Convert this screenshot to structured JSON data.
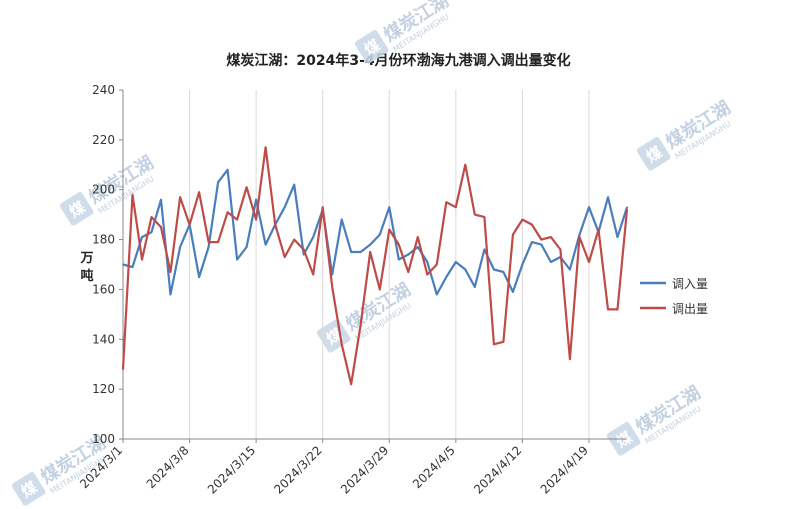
{
  "chart_data": {
    "type": "line",
    "title": "煤炭江湖：2024年3-4月份环渤海九港调入调出量变化",
    "ylabel": "万吨",
    "xlabel": "",
    "ylim": [
      100,
      240
    ],
    "yticks": [
      100,
      120,
      140,
      160,
      180,
      200,
      220,
      240
    ],
    "x_tick_labels": [
      "2024/3/1",
      "2024/3/8",
      "2024/3/15",
      "2024/3/22",
      "2024/3/29",
      "2024/4/5",
      "2024/4/12",
      "2024/4/19"
    ],
    "x": [
      "2024/3/1",
      "2024/3/2",
      "2024/3/3",
      "2024/3/4",
      "2024/3/5",
      "2024/3/6",
      "2024/3/7",
      "2024/3/8",
      "2024/3/9",
      "2024/3/10",
      "2024/3/11",
      "2024/3/12",
      "2024/3/13",
      "2024/3/14",
      "2024/3/15",
      "2024/3/16",
      "2024/3/17",
      "2024/3/18",
      "2024/3/19",
      "2024/3/20",
      "2024/3/21",
      "2024/3/22",
      "2024/3/23",
      "2024/3/24",
      "2024/3/25",
      "2024/3/26",
      "2024/3/27",
      "2024/3/28",
      "2024/3/29",
      "2024/3/30",
      "2024/3/31",
      "2024/4/1",
      "2024/4/2",
      "2024/4/3",
      "2024/4/4",
      "2024/4/5",
      "2024/4/6",
      "2024/4/7",
      "2024/4/8",
      "2024/4/9",
      "2024/4/10",
      "2024/4/11",
      "2024/4/12",
      "2024/4/13",
      "2024/4/14",
      "2024/4/15",
      "2024/4/16",
      "2024/4/17",
      "2024/4/18",
      "2024/4/19",
      "2024/4/20",
      "2024/4/21",
      "2024/4/22",
      "2024/4/23"
    ],
    "series": [
      {
        "name": "调入量",
        "color": "#4a7ebb",
        "values": [
          170,
          169,
          181,
          183,
          196,
          158,
          177,
          186,
          165,
          177,
          203,
          208,
          172,
          177,
          196,
          178,
          186,
          193,
          202,
          174,
          181,
          192,
          166,
          188,
          175,
          175,
          178,
          182,
          193,
          172,
          174,
          177,
          171,
          158,
          165,
          171,
          168,
          161,
          176,
          168,
          167,
          159,
          170,
          179,
          178,
          171,
          173,
          168,
          182,
          193,
          183,
          197,
          181,
          193
        ]
      },
      {
        "name": "调出量",
        "color": "#be4b48",
        "values": [
          128,
          198,
          172,
          189,
          185,
          167,
          197,
          186,
          199,
          179,
          179,
          191,
          188,
          201,
          188,
          217,
          186,
          173,
          180,
          176,
          166,
          193,
          161,
          138,
          122,
          146,
          175,
          160,
          184,
          178,
          167,
          181,
          166,
          170,
          195,
          193,
          210,
          190,
          189,
          138,
          139,
          182,
          188,
          186,
          180,
          181,
          176,
          132,
          181,
          171,
          184,
          152,
          152,
          192
        ]
      }
    ],
    "legend_position": "right",
    "grid": "vertical"
  },
  "watermark": {
    "text": "煤炭江湖",
    "sub": "MEITANJIANGHU",
    "logo_char": "煤"
  }
}
